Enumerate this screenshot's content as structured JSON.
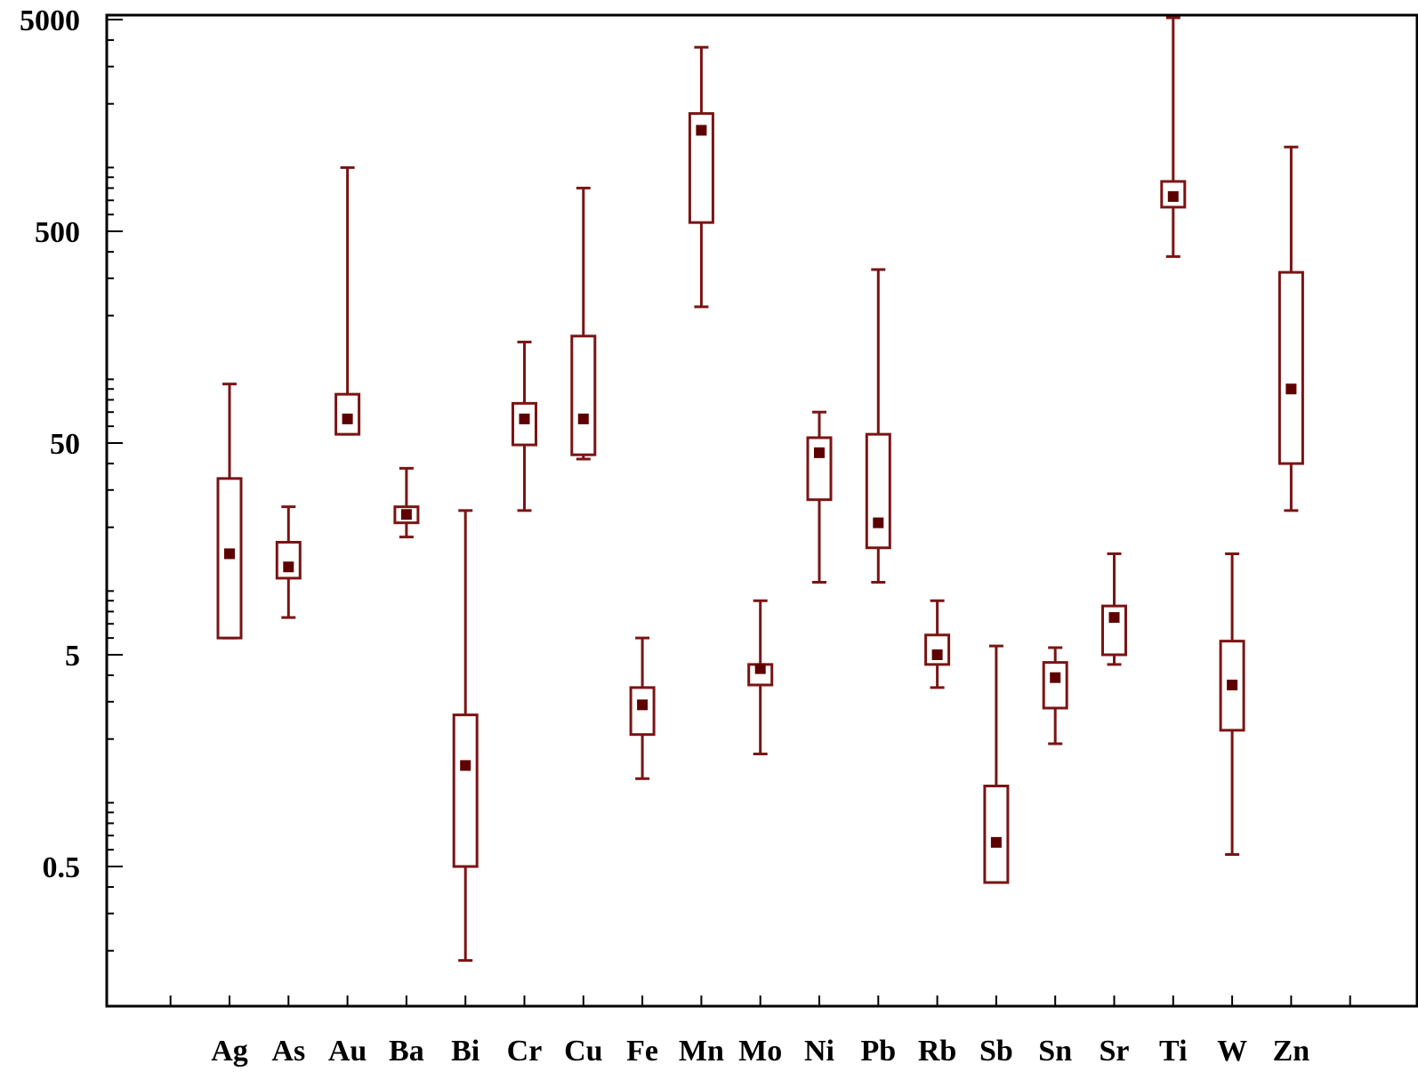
{
  "chart_data": {
    "type": "boxplot",
    "title": "",
    "xlabel": "",
    "ylabel": "",
    "y_scale": "log10",
    "ylim": [
      0.15,
      5200
    ],
    "y_ticks": [
      0.5,
      5,
      50,
      500,
      5000
    ],
    "y_tick_labels": [
      "0.5",
      "5",
      "50",
      "500",
      "5000"
    ],
    "grid": false,
    "legend": "none",
    "colors": {
      "series": "#7a1414",
      "axis": "#000000"
    },
    "categories": [
      "Ag",
      "As",
      "Au",
      "Ba",
      "Bi",
      "Cr",
      "Cu",
      "Fe",
      "Mn",
      "Mo",
      "Ni",
      "Pb",
      "Rb",
      "Sb",
      "Sn",
      "Sr",
      "Ti",
      "W",
      "Zn"
    ],
    "series": [
      {
        "boxes": [
          {
            "label": "Ag",
            "whisker_low": 6,
            "q1": 6,
            "median": 15,
            "q3": 34,
            "whisker_high": 95
          },
          {
            "label": "As",
            "whisker_low": 7.5,
            "q1": 11.5,
            "median": 13,
            "q3": 17,
            "whisker_high": 25
          },
          {
            "label": "Au",
            "whisker_low": 55,
            "q1": 55,
            "median": 65,
            "q3": 85,
            "whisker_high": 1000
          },
          {
            "label": "Ba",
            "whisker_low": 18,
            "q1": 21,
            "median": 23,
            "q3": 25,
            "whisker_high": 38
          },
          {
            "label": "Bi",
            "whisker_low": 0.18,
            "q1": 0.5,
            "median": 1.5,
            "q3": 2.6,
            "whisker_high": 24
          },
          {
            "label": "Cr",
            "whisker_low": 24,
            "q1": 49,
            "median": 65,
            "q3": 77,
            "whisker_high": 150
          },
          {
            "label": "Cu",
            "whisker_low": 42,
            "q1": 44,
            "median": 65,
            "q3": 160,
            "whisker_high": 800
          },
          {
            "label": "Fe",
            "whisker_low": 1.3,
            "q1": 2.1,
            "median": 2.9,
            "q3": 3.5,
            "whisker_high": 6
          },
          {
            "label": "Mn",
            "whisker_low": 220,
            "q1": 550,
            "median": 1500,
            "q3": 1800,
            "whisker_high": 3700
          },
          {
            "label": "Mo",
            "whisker_low": 1.7,
            "q1": 3.6,
            "median": 4.3,
            "q3": 4.5,
            "whisker_high": 9
          },
          {
            "label": "Ni",
            "whisker_low": 11,
            "q1": 27,
            "median": 45,
            "q3": 53,
            "whisker_high": 70
          },
          {
            "label": "Pb",
            "whisker_low": 11,
            "q1": 16,
            "median": 21,
            "q3": 55,
            "whisker_high": 330
          },
          {
            "label": "Rb",
            "whisker_low": 3.5,
            "q1": 4.5,
            "median": 5,
            "q3": 6.2,
            "whisker_high": 9
          },
          {
            "label": "Sb",
            "whisker_low": 0.42,
            "q1": 0.42,
            "median": 0.65,
            "q3": 1.2,
            "whisker_high": 5.5
          },
          {
            "label": "Sn",
            "whisker_low": 1.9,
            "q1": 2.8,
            "median": 3.9,
            "q3": 4.6,
            "whisker_high": 5.4
          },
          {
            "label": "Sr",
            "whisker_low": 4.5,
            "q1": 5,
            "median": 7.5,
            "q3": 8.5,
            "whisker_high": 15
          },
          {
            "label": "Ti",
            "whisker_low": 380,
            "q1": 650,
            "median": 730,
            "q3": 860,
            "whisker_high": 5100
          },
          {
            "label": "W",
            "whisker_low": 0.57,
            "q1": 2.2,
            "median": 3.6,
            "q3": 5.8,
            "whisker_high": 15
          },
          {
            "label": "Zn",
            "whisker_low": 24,
            "q1": 40,
            "median": 90,
            "q3": 320,
            "whisker_high": 1250
          }
        ]
      }
    ]
  }
}
